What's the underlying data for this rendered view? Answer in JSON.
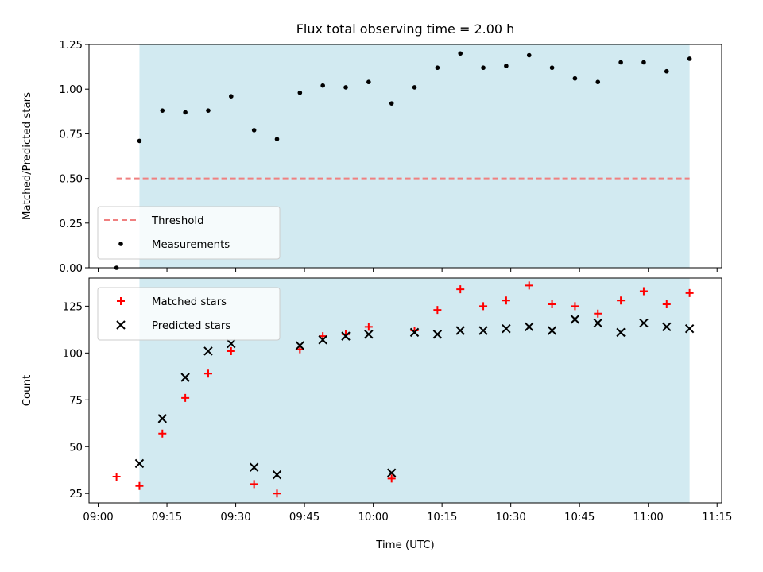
{
  "chart_data": {
    "title": "Flux total observing time = 2.00 h",
    "xlabel": "Time (UTC)",
    "x_ticks": [
      "09:00",
      "09:15",
      "09:30",
      "09:45",
      "10:00",
      "10:15",
      "10:30",
      "10:45",
      "11:00",
      "11:15"
    ],
    "shaded_region": {
      "start": "09:09",
      "end": "11:09",
      "color": "#add8e6"
    },
    "panels": [
      {
        "type": "scatter",
        "ylabel": "Matched/Predicted stars",
        "ylim": [
          0,
          1.25
        ],
        "y_ticks": [
          "0.00",
          "0.25",
          "0.50",
          "0.75",
          "1.00",
          "1.25"
        ],
        "legend_position": "lower-left",
        "threshold": {
          "name": "Threshold",
          "value": 0.5,
          "x_start": "09:04",
          "x_end": "11:09",
          "color": "#f08080"
        },
        "series": [
          {
            "name": "Measurements",
            "marker": "dot",
            "color": "#000000",
            "x": [
              "09:04",
              "09:09",
              "09:14",
              "09:19",
              "09:24",
              "09:29",
              "09:34",
              "09:39",
              "09:44",
              "09:49",
              "09:54",
              "09:59",
              "10:04",
              "10:09",
              "10:14",
              "10:19",
              "10:24",
              "10:29",
              "10:34",
              "10:39",
              "10:44",
              "10:49",
              "10:54",
              "10:59",
              "11:04",
              "11:09"
            ],
            "y": [
              0.0,
              0.71,
              0.88,
              0.87,
              0.88,
              0.96,
              0.77,
              0.72,
              0.98,
              1.02,
              1.01,
              1.04,
              0.92,
              1.01,
              1.12,
              1.2,
              1.12,
              1.13,
              1.19,
              1.12,
              1.06,
              1.04,
              1.15,
              1.15,
              1.1,
              1.17
            ]
          }
        ]
      },
      {
        "type": "scatter",
        "ylabel": "Count",
        "ylim": [
          20,
          140
        ],
        "y_ticks": [
          "25",
          "50",
          "75",
          "100",
          "125"
        ],
        "legend_position": "upper-left",
        "series": [
          {
            "name": "Matched stars",
            "marker": "plus",
            "color": "#ff0000",
            "x": [
              "09:04",
              "09:09",
              "09:14",
              "09:19",
              "09:24",
              "09:29",
              "09:34",
              "09:39",
              "09:44",
              "09:49",
              "09:54",
              "09:59",
              "10:04",
              "10:09",
              "10:14",
              "10:19",
              "10:24",
              "10:29",
              "10:34",
              "10:39",
              "10:44",
              "10:49",
              "10:54",
              "10:59",
              "11:04",
              "11:09"
            ],
            "y": [
              34,
              29,
              57,
              76,
              89,
              101,
              30,
              25,
              102,
              109,
              110,
              114,
              33,
              112,
              123,
              134,
              125,
              128,
              136,
              126,
              125,
              121,
              128,
              133,
              126,
              132
            ]
          },
          {
            "name": "Predicted stars",
            "marker": "x",
            "color": "#000000",
            "x": [
              "09:09",
              "09:14",
              "09:19",
              "09:24",
              "09:29",
              "09:34",
              "09:39",
              "09:44",
              "09:49",
              "09:54",
              "09:59",
              "10:04",
              "10:09",
              "10:14",
              "10:19",
              "10:24",
              "10:29",
              "10:34",
              "10:39",
              "10:44",
              "10:49",
              "10:54",
              "10:59",
              "11:04",
              "11:09"
            ],
            "y": [
              41,
              65,
              87,
              101,
              105,
              39,
              35,
              104,
              107,
              109,
              110,
              36,
              111,
              110,
              112,
              112,
              113,
              114,
              112,
              118,
              116,
              111,
              116,
              114,
              113
            ]
          }
        ]
      }
    ]
  }
}
